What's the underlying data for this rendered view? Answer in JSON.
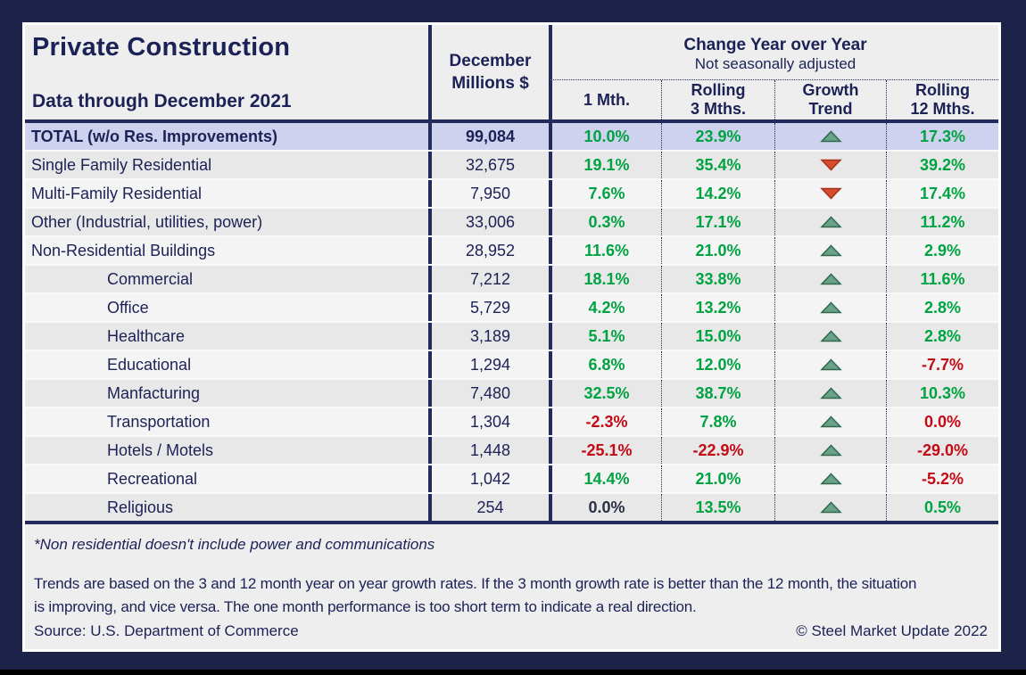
{
  "header": {
    "title": "Private Construction",
    "subtitle": "Data through December 2021",
    "dec_line1": "December",
    "dec_line2": "Millions $",
    "change_title": "Change Year over Year",
    "change_subtitle": "Not seasonally adjusted",
    "col_1mth": "1 Mth.",
    "col_r3_line1": "Rolling",
    "col_r3_line2": "3 Mths.",
    "col_gt_line1": "Growth",
    "col_gt_line2": "Trend",
    "col_r12_line1": "Rolling",
    "col_r12_line2": "12 Mths."
  },
  "rows": [
    {
      "label": "TOTAL (w/o Res. Improvements)",
      "indent": false,
      "total": true,
      "dec": "99,084",
      "m1": {
        "v": "10.0%",
        "c": "green"
      },
      "r3": {
        "v": "23.9%",
        "c": "green"
      },
      "trend": "up",
      "r12": {
        "v": "17.3%",
        "c": "green"
      }
    },
    {
      "label": "Single Family Residential",
      "indent": false,
      "total": false,
      "dec": "32,675",
      "m1": {
        "v": "19.1%",
        "c": "green"
      },
      "r3": {
        "v": "35.4%",
        "c": "green"
      },
      "trend": "down",
      "r12": {
        "v": "39.2%",
        "c": "green"
      }
    },
    {
      "label": "Multi-Family Residential",
      "indent": false,
      "total": false,
      "dec": "7,950",
      "m1": {
        "v": "7.6%",
        "c": "green"
      },
      "r3": {
        "v": "14.2%",
        "c": "green"
      },
      "trend": "down",
      "r12": {
        "v": "17.4%",
        "c": "green"
      }
    },
    {
      "label": "Other (Industrial, utilities, power)",
      "indent": false,
      "total": false,
      "dec": "33,006",
      "m1": {
        "v": "0.3%",
        "c": "green"
      },
      "r3": {
        "v": "17.1%",
        "c": "green"
      },
      "trend": "up",
      "r12": {
        "v": "11.2%",
        "c": "green"
      }
    },
    {
      "label": "Non-Residential Buildings",
      "indent": false,
      "total": false,
      "dec": "28,952",
      "m1": {
        "v": "11.6%",
        "c": "green"
      },
      "r3": {
        "v": "21.0%",
        "c": "green"
      },
      "trend": "up",
      "r12": {
        "v": "2.9%",
        "c": "green"
      }
    },
    {
      "label": "Commercial",
      "indent": true,
      "total": false,
      "dec": "7,212",
      "m1": {
        "v": "18.1%",
        "c": "green"
      },
      "r3": {
        "v": "33.8%",
        "c": "green"
      },
      "trend": "up",
      "r12": {
        "v": "11.6%",
        "c": "green"
      }
    },
    {
      "label": "Office",
      "indent": true,
      "total": false,
      "dec": "5,729",
      "m1": {
        "v": "4.2%",
        "c": "green"
      },
      "r3": {
        "v": "13.2%",
        "c": "green"
      },
      "trend": "up",
      "r12": {
        "v": "2.8%",
        "c": "green"
      }
    },
    {
      "label": "Healthcare",
      "indent": true,
      "total": false,
      "dec": "3,189",
      "m1": {
        "v": "5.1%",
        "c": "green"
      },
      "r3": {
        "v": "15.0%",
        "c": "green"
      },
      "trend": "up",
      "r12": {
        "v": "2.8%",
        "c": "green"
      }
    },
    {
      "label": "Educational",
      "indent": true,
      "total": false,
      "dec": "1,294",
      "m1": {
        "v": "6.8%",
        "c": "green"
      },
      "r3": {
        "v": "12.0%",
        "c": "green"
      },
      "trend": "up",
      "r12": {
        "v": "-7.7%",
        "c": "red"
      }
    },
    {
      "label": "Manfacturing",
      "indent": true,
      "total": false,
      "dec": "7,480",
      "m1": {
        "v": "32.5%",
        "c": "green"
      },
      "r3": {
        "v": "38.7%",
        "c": "green"
      },
      "trend": "up",
      "r12": {
        "v": "10.3%",
        "c": "green"
      }
    },
    {
      "label": "Transportation",
      "indent": true,
      "total": false,
      "dec": "1,304",
      "m1": {
        "v": "-2.3%",
        "c": "red"
      },
      "r3": {
        "v": "7.8%",
        "c": "green"
      },
      "trend": "up",
      "r12": {
        "v": "0.0%",
        "c": "red"
      }
    },
    {
      "label": "Hotels / Motels",
      "indent": true,
      "total": false,
      "dec": "1,448",
      "m1": {
        "v": "-25.1%",
        "c": "red"
      },
      "r3": {
        "v": "-22.9%",
        "c": "red"
      },
      "trend": "up",
      "r12": {
        "v": "-29.0%",
        "c": "red"
      }
    },
    {
      "label": "Recreational",
      "indent": true,
      "total": false,
      "dec": "1,042",
      "m1": {
        "v": "14.4%",
        "c": "green"
      },
      "r3": {
        "v": "21.0%",
        "c": "green"
      },
      "trend": "up",
      "r12": {
        "v": "-5.2%",
        "c": "red"
      }
    },
    {
      "label": "Religious",
      "indent": true,
      "total": false,
      "dec": "254",
      "m1": {
        "v": "0.0%",
        "c": "dark"
      },
      "r3": {
        "v": "13.5%",
        "c": "green"
      },
      "trend": "up",
      "r12": {
        "v": "0.5%",
        "c": "green"
      }
    }
  ],
  "footer": {
    "note": "*Non residential doesn't include power and communications",
    "trends_line1": "Trends are based on the 3 and 12 month year on year growth rates. If the 3 month growth rate is better than the 12 month, the situation",
    "trends_line2": "is improving, and vice versa. The one month performance is too short term to indicate a real direction.",
    "source": "Source: U.S. Department of Commerce",
    "copyright": "© Steel Market Update 2022"
  },
  "colors": {
    "page_bg": "#1c2248",
    "sheet_bg": "#eeeeee",
    "navy_line": "#232b5a",
    "navy_text": "#1c2156",
    "lavender": "#cfd2ee",
    "row_dark": "#e8e8e8",
    "row_light": "#f4f4f4",
    "green": "#00a341",
    "red": "#c40a14",
    "dark_value": "#2b3042",
    "arrow_up_fill": "#69a287",
    "arrow_up_stroke": "#2d6a4e",
    "arrow_down_fill": "#d84b2b",
    "arrow_down_stroke": "#a33320"
  }
}
